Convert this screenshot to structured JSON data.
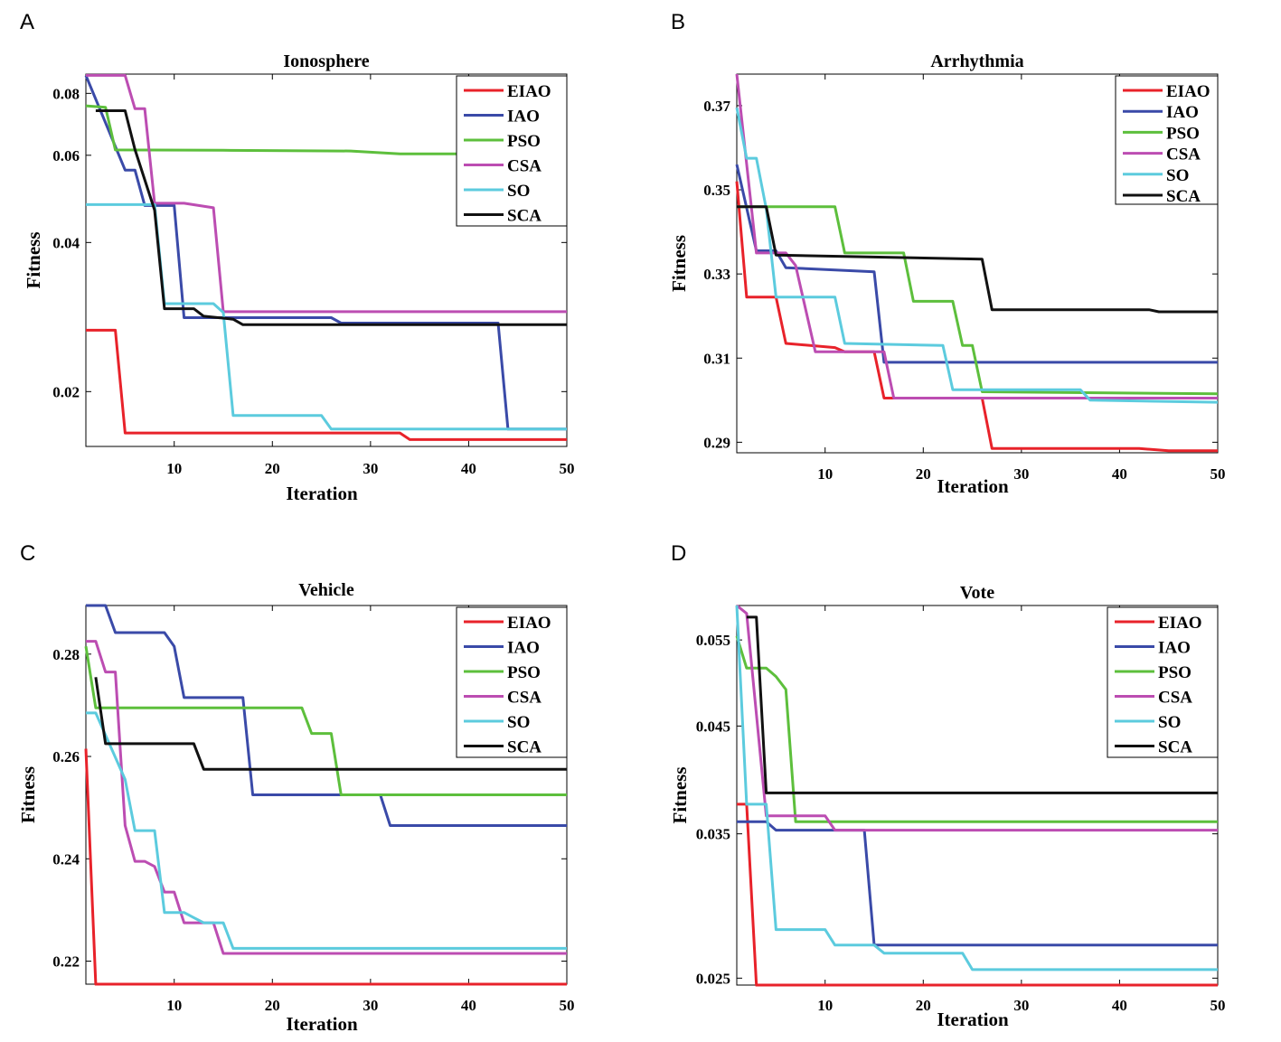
{
  "panel_labels": [
    "A",
    "B",
    "C",
    "D"
  ],
  "colors": {
    "EIAO": "#e8222a",
    "IAO": "#3a4aa8",
    "PSO": "#5dbf3c",
    "CSA": "#bc4db2",
    "SO": "#5ccbde",
    "SCA": "#111111"
  },
  "chart_data": [
    {
      "type": "line",
      "panel": "A",
      "title": "Ionosphere",
      "xlabel": "Iteration",
      "ylabel": "Fitness",
      "xlim": [
        1,
        50
      ],
      "ylim": [
        0.0155,
        0.0875
      ],
      "xticks": [
        10,
        20,
        30,
        40,
        50
      ],
      "xtick_labels": [
        "10",
        "20",
        "30",
        "40",
        "50"
      ],
      "yticks": [
        0.02,
        0.04,
        0.06,
        0.08
      ],
      "ytick_labels": [
        "0.02",
        "0.04",
        "0.06",
        "0.08"
      ],
      "legend": [
        "EIAO",
        "IAO",
        "PSO",
        "CSA",
        "SO",
        "SCA"
      ],
      "series": [
        {
          "name": "EIAO",
          "points": [
            [
              1,
              0.0266
            ],
            [
              4,
              0.0266
            ],
            [
              5,
              0.0165
            ],
            [
              33,
              0.0165
            ],
            [
              34,
              0.016
            ],
            [
              50,
              0.016
            ]
          ]
        },
        {
          "name": "IAO",
          "points": [
            [
              1,
              0.087
            ],
            [
              5,
              0.056
            ],
            [
              6,
              0.056
            ],
            [
              7,
              0.0475
            ],
            [
              10,
              0.0475
            ],
            [
              11,
              0.0282
            ],
            [
              26,
              0.0282
            ],
            [
              27,
              0.0275
            ],
            [
              43,
              0.0275
            ],
            [
              44,
              0.0168
            ],
            [
              50,
              0.0168
            ]
          ]
        },
        {
          "name": "PSO",
          "points": [
            [
              1,
              0.0755
            ],
            [
              3,
              0.075
            ],
            [
              4,
              0.0615
            ],
            [
              15,
              0.0614
            ],
            [
              28,
              0.0612
            ],
            [
              33,
              0.0604
            ],
            [
              50,
              0.0604
            ]
          ]
        },
        {
          "name": "CSA",
          "points": [
            [
              1,
              0.087
            ],
            [
              5,
              0.087
            ],
            [
              6,
              0.0745
            ],
            [
              7,
              0.0745
            ],
            [
              8,
              0.048
            ],
            [
              11,
              0.048
            ],
            [
              14,
              0.047
            ],
            [
              15,
              0.029
            ],
            [
              50,
              0.029
            ]
          ]
        },
        {
          "name": "SO",
          "points": [
            [
              1,
              0.0477
            ],
            [
              8,
              0.0477
            ],
            [
              9,
              0.0301
            ],
            [
              14,
              0.0301
            ],
            [
              15,
              0.0289
            ],
            [
              16,
              0.0179
            ],
            [
              25,
              0.0179
            ],
            [
              26,
              0.0168
            ],
            [
              50,
              0.0168
            ]
          ]
        },
        {
          "name": "SCA",
          "points": [
            [
              2,
              0.0738
            ],
            [
              5,
              0.0738
            ],
            [
              6,
              0.0616
            ],
            [
              8,
              0.0465
            ],
            [
              9,
              0.0294
            ],
            [
              12,
              0.0294
            ],
            [
              13,
              0.0284
            ],
            [
              16,
              0.028
            ],
            [
              17,
              0.0273
            ],
            [
              50,
              0.0273
            ]
          ]
        }
      ]
    },
    {
      "type": "line",
      "panel": "B",
      "title": "Arrhythmia",
      "xlabel": "Iteration",
      "ylabel": "Fitness",
      "xlim": [
        1,
        50
      ],
      "ylim": [
        0.2875,
        0.3775
      ],
      "xticks": [
        10,
        20,
        30,
        40,
        50
      ],
      "xtick_labels": [
        "10",
        "20",
        "30",
        "40",
        "50"
      ],
      "yticks": [
        0.29,
        0.31,
        0.33,
        0.35,
        0.37
      ],
      "ytick_labels": [
        "0.29",
        "0.31",
        "0.33",
        "0.35",
        "0.37"
      ],
      "legend": [
        "EIAO",
        "IAO",
        "PSO",
        "CSA",
        "SO",
        "SCA"
      ],
      "series": [
        {
          "name": "EIAO",
          "points": [
            [
              1,
              0.352
            ],
            [
              2,
              0.3245
            ],
            [
              5,
              0.3245
            ],
            [
              6,
              0.3135
            ],
            [
              11,
              0.3125
            ],
            [
              12,
              0.3115
            ],
            [
              15,
              0.3115
            ],
            [
              16,
              0.3005
            ],
            [
              26,
              0.3005
            ],
            [
              27,
              0.2885
            ],
            [
              42,
              0.2885
            ],
            [
              45,
              0.288
            ],
            [
              50,
              0.288
            ]
          ]
        },
        {
          "name": "IAO",
          "points": [
            [
              1,
              0.356
            ],
            [
              3,
              0.3355
            ],
            [
              5,
              0.3355
            ],
            [
              6,
              0.3315
            ],
            [
              15,
              0.3305
            ],
            [
              16,
              0.309
            ],
            [
              50,
              0.309
            ]
          ]
        },
        {
          "name": "PSO",
          "points": [
            [
              1,
              0.346
            ],
            [
              11,
              0.346
            ],
            [
              12,
              0.335
            ],
            [
              18,
              0.335
            ],
            [
              19,
              0.3235
            ],
            [
              23,
              0.3235
            ],
            [
              24,
              0.313
            ],
            [
              25,
              0.313
            ],
            [
              26,
              0.302
            ],
            [
              50,
              0.3015
            ]
          ]
        },
        {
          "name": "CSA",
          "points": [
            [
              1,
              0.3775
            ],
            [
              3,
              0.335
            ],
            [
              6,
              0.335
            ],
            [
              7,
              0.332
            ],
            [
              9,
              0.3115
            ],
            [
              11,
              0.3115
            ],
            [
              13,
              0.3115
            ],
            [
              16,
              0.3115
            ],
            [
              17,
              0.3005
            ],
            [
              50,
              0.3005
            ]
          ]
        },
        {
          "name": "SO",
          "points": [
            [
              1,
              0.3695
            ],
            [
              2,
              0.3575
            ],
            [
              3,
              0.3575
            ],
            [
              4,
              0.3455
            ],
            [
              5,
              0.3245
            ],
            [
              11,
              0.3245
            ],
            [
              12,
              0.3135
            ],
            [
              22,
              0.313
            ],
            [
              23,
              0.3025
            ],
            [
              36,
              0.3025
            ],
            [
              37,
              0.3
            ],
            [
              50,
              0.2995
            ]
          ]
        },
        {
          "name": "SCA",
          "points": [
            [
              1,
              0.346
            ],
            [
              4,
              0.346
            ],
            [
              5,
              0.3345
            ],
            [
              26,
              0.3335
            ],
            [
              27,
              0.3215
            ],
            [
              43,
              0.3215
            ],
            [
              44,
              0.321
            ],
            [
              50,
              0.321
            ]
          ]
        }
      ]
    },
    {
      "type": "line",
      "panel": "C",
      "title": "Vehicle",
      "xlabel": "Iteration",
      "ylabel": "Fitness",
      "xlim": [
        1,
        50
      ],
      "ylim": [
        0.2155,
        0.2895
      ],
      "xticks": [
        10,
        20,
        30,
        40,
        50
      ],
      "xtick_labels": [
        "10",
        "20",
        "30",
        "40",
        "50"
      ],
      "yticks": [
        0.22,
        0.24,
        0.26,
        0.28
      ],
      "ytick_labels": [
        "0.22",
        "0.24",
        "0.26",
        "0.28"
      ],
      "legend": [
        "EIAO",
        "IAO",
        "PSO",
        "CSA",
        "SO",
        "SCA"
      ],
      "series": [
        {
          "name": "EIAO",
          "points": [
            [
              1,
              0.2615
            ],
            [
              2,
              0.2155
            ],
            [
              50,
              0.2155
            ]
          ]
        },
        {
          "name": "IAO",
          "points": [
            [
              1,
              0.2895
            ],
            [
              3,
              0.2895
            ],
            [
              4,
              0.2842
            ],
            [
              9,
              0.2842
            ],
            [
              10,
              0.2815
            ],
            [
              11,
              0.2715
            ],
            [
              17,
              0.2715
            ],
            [
              18,
              0.2525
            ],
            [
              31,
              0.2525
            ],
            [
              32,
              0.2465
            ],
            [
              50,
              0.2465
            ]
          ]
        },
        {
          "name": "PSO",
          "points": [
            [
              1,
              0.2815
            ],
            [
              2,
              0.2695
            ],
            [
              8,
              0.2695
            ],
            [
              23,
              0.2695
            ],
            [
              24,
              0.2645
            ],
            [
              26,
              0.2645
            ],
            [
              27,
              0.2525
            ],
            [
              50,
              0.2525
            ]
          ]
        },
        {
          "name": "CSA",
          "points": [
            [
              1,
              0.2825
            ],
            [
              2,
              0.2825
            ],
            [
              3,
              0.2765
            ],
            [
              4,
              0.2765
            ],
            [
              5,
              0.2465
            ],
            [
              6,
              0.2395
            ],
            [
              7,
              0.2395
            ],
            [
              8,
              0.2385
            ],
            [
              9,
              0.2335
            ],
            [
              10,
              0.2335
            ],
            [
              11,
              0.2275
            ],
            [
              14,
              0.2275
            ],
            [
              15,
              0.2215
            ],
            [
              50,
              0.2215
            ]
          ]
        },
        {
          "name": "SO",
          "points": [
            [
              1,
              0.2685
            ],
            [
              2,
              0.2685
            ],
            [
              5,
              0.2555
            ],
            [
              6,
              0.2455
            ],
            [
              8,
              0.2455
            ],
            [
              9,
              0.2295
            ],
            [
              11,
              0.2295
            ],
            [
              12,
              0.2285
            ],
            [
              13,
              0.2275
            ],
            [
              15,
              0.2275
            ],
            [
              16,
              0.2225
            ],
            [
              50,
              0.2225
            ]
          ]
        },
        {
          "name": "SCA",
          "points": [
            [
              2,
              0.2755
            ],
            [
              3,
              0.2625
            ],
            [
              12,
              0.2625
            ],
            [
              13,
              0.2575
            ],
            [
              50,
              0.2575
            ]
          ]
        }
      ]
    },
    {
      "type": "line",
      "panel": "D",
      "title": "Vote",
      "xlabel": "Iteration",
      "ylabel": "Fitness",
      "xlim": [
        1,
        50
      ],
      "ylim": [
        0.0246,
        0.0596
      ],
      "xticks": [
        10,
        20,
        30,
        40,
        50
      ],
      "xtick_labels": [
        "10",
        "20",
        "30",
        "40",
        "50"
      ],
      "yticks": [
        0.025,
        0.035,
        0.045,
        0.055
      ],
      "yticks_note": "axis uses a non-linear (log-like) scale",
      "ytick_labels": [
        "0.025",
        "0.035",
        "0.045",
        "0.055"
      ],
      "legend": [
        "EIAO",
        "IAO",
        "PSO",
        "CSA",
        "SO",
        "SCA"
      ],
      "series": [
        {
          "name": "EIAO",
          "points": [
            [
              1,
              0.0375
            ],
            [
              2,
              0.0375
            ],
            [
              3,
              0.0246
            ],
            [
              50,
              0.0246
            ]
          ]
        },
        {
          "name": "IAO",
          "points": [
            [
              1,
              0.036
            ],
            [
              4,
              0.036
            ],
            [
              5,
              0.0353
            ],
            [
              14,
              0.0353
            ],
            [
              15,
              0.027
            ],
            [
              50,
              0.027
            ]
          ]
        },
        {
          "name": "PSO",
          "points": [
            [
              1,
              0.0555
            ],
            [
              2,
              0.0515
            ],
            [
              4,
              0.0515
            ],
            [
              5,
              0.0505
            ],
            [
              6,
              0.049
            ],
            [
              7,
              0.036
            ],
            [
              50,
              0.036
            ]
          ]
        },
        {
          "name": "CSA",
          "points": [
            [
              1,
              0.0596
            ],
            [
              2,
              0.0585
            ],
            [
              4,
              0.0365
            ],
            [
              10,
              0.0365
            ],
            [
              11,
              0.0353
            ],
            [
              50,
              0.0353
            ]
          ]
        },
        {
          "name": "SO",
          "points": [
            [
              1,
              0.0596
            ],
            [
              2,
              0.0375
            ],
            [
              4,
              0.0375
            ],
            [
              5,
              0.028
            ],
            [
              10,
              0.028
            ],
            [
              11,
              0.027
            ],
            [
              15,
              0.027
            ],
            [
              16,
              0.0265
            ],
            [
              24,
              0.0265
            ],
            [
              25,
              0.0255
            ],
            [
              50,
              0.0255
            ]
          ]
        },
        {
          "name": "SCA",
          "points": [
            [
              2,
              0.058
            ],
            [
              3,
              0.058
            ],
            [
              4,
              0.0385
            ],
            [
              50,
              0.0385
            ]
          ]
        }
      ]
    }
  ]
}
